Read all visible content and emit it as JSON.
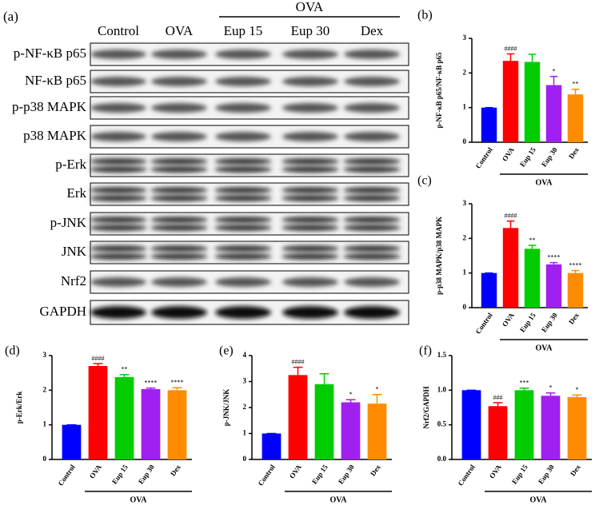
{
  "blot": {
    "panel": "(a)",
    "group_label": "OVA",
    "lanes": [
      "Control",
      "OVA",
      "Eup 15",
      "Eup 30",
      "Dex"
    ],
    "rows": [
      "p-NF-κB p65",
      "NF-κB p65",
      "p-p38 MAPK",
      "p38 MAPK",
      "p-Erk",
      "Erk",
      "p-JNK",
      "JNK",
      "Nrf2",
      "GAPDH"
    ]
  },
  "chart_data": [
    {
      "type": "bar",
      "panel": "(b)",
      "ylabel": "p-NF-κB p65/NF-κB p65",
      "categories": [
        "Control",
        "OVA",
        "Eup 15",
        "Eup 30",
        "Dex"
      ],
      "values": [
        1.0,
        2.35,
        2.32,
        1.65,
        1.38
      ],
      "errors": [
        0,
        0.2,
        0.22,
        0.25,
        0.15
      ],
      "annotations": [
        null,
        "####",
        null,
        "*",
        "**"
      ],
      "colors": [
        "#0000ff",
        "#ff0000",
        "#00cc00",
        "#a020f0",
        "#ff8c00"
      ],
      "group_label": "OVA",
      "ylim": [
        0,
        3
      ],
      "yticks": [
        0,
        1,
        2,
        3
      ]
    },
    {
      "type": "bar",
      "panel": "(c)",
      "ylabel": "p-p38 MAPK/p38 MAPK",
      "categories": [
        "Control",
        "OVA",
        "Eup 15",
        "Eup 30",
        "Dex"
      ],
      "values": [
        1.0,
        2.3,
        1.7,
        1.25,
        1.0
      ],
      "errors": [
        0,
        0.2,
        0.1,
        0.05,
        0.07
      ],
      "annotations": [
        null,
        "####",
        "**",
        "****",
        "****"
      ],
      "colors": [
        "#0000ff",
        "#ff0000",
        "#00cc00",
        "#a020f0",
        "#ff8c00"
      ],
      "group_label": "OVA",
      "ylim": [
        0,
        3
      ],
      "yticks": [
        0,
        1,
        2,
        3
      ]
    },
    {
      "type": "bar",
      "panel": "(d)",
      "ylabel": "p-Erk/Erk",
      "categories": [
        "Control",
        "OVA",
        "Eup 15",
        "Eup 30",
        "Dex"
      ],
      "values": [
        1.0,
        2.7,
        2.38,
        2.03,
        2.0
      ],
      "errors": [
        0,
        0.07,
        0.07,
        0.03,
        0.07
      ],
      "annotations": [
        null,
        "####",
        "**",
        "****",
        "****"
      ],
      "colors": [
        "#0000ff",
        "#ff0000",
        "#00cc00",
        "#a020f0",
        "#ff8c00"
      ],
      "group_label": "OVA",
      "ylim": [
        0,
        3
      ],
      "yticks": [
        0,
        1,
        2,
        3
      ]
    },
    {
      "type": "bar",
      "panel": "(e)",
      "ylabel": "p-JNK/JNK",
      "categories": [
        "Control",
        "OVA",
        "Eup 15",
        "Eup 30",
        "Dex"
      ],
      "values": [
        1.0,
        3.25,
        2.9,
        2.2,
        2.15
      ],
      "errors": [
        0,
        0.3,
        0.4,
        0.1,
        0.35
      ],
      "annotations": [
        null,
        "####",
        null,
        "*",
        "*"
      ],
      "colors": [
        "#0000ff",
        "#ff0000",
        "#00cc00",
        "#a020f0",
        "#ff8c00"
      ],
      "group_label": "OVA",
      "ylim": [
        0,
        4
      ],
      "yticks": [
        0,
        1,
        2,
        3,
        4
      ]
    },
    {
      "type": "bar",
      "panel": "(f)",
      "ylabel": "Nrf2/GAPDH",
      "categories": [
        "Control",
        "OVA",
        "Eup 15",
        "Eup 30",
        "Dex"
      ],
      "values": [
        1.0,
        0.77,
        1.0,
        0.92,
        0.9
      ],
      "errors": [
        0,
        0.05,
        0.03,
        0.04,
        0.03
      ],
      "annotations": [
        null,
        "###",
        "***",
        "*",
        "*"
      ],
      "colors": [
        "#0000ff",
        "#ff0000",
        "#00cc00",
        "#a020f0",
        "#ff8c00"
      ],
      "group_label": "OVA",
      "ylim": [
        0,
        1.5
      ],
      "yticks": [
        {
          "value": 0,
          "label": "0.0"
        },
        {
          "value": 0.5,
          "label": "0.5"
        },
        {
          "value": 1,
          "label": "1.0"
        },
        {
          "value": 1.5,
          "label": "1.5"
        }
      ]
    }
  ]
}
